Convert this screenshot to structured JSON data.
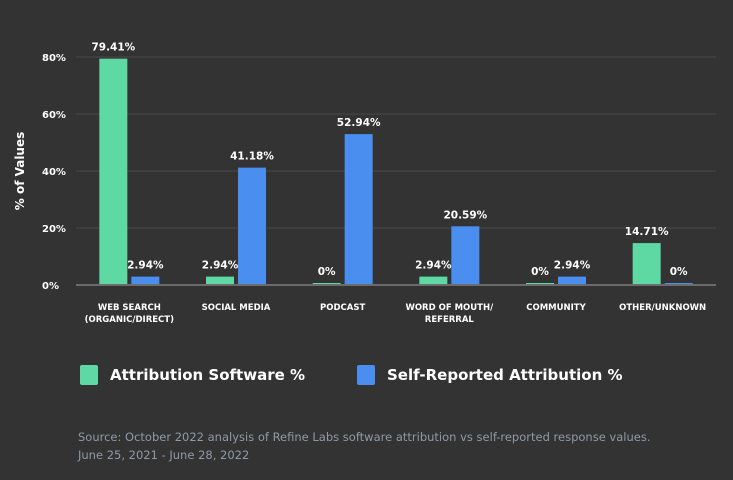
{
  "chart_data": {
    "type": "bar",
    "ylabel": "% of Values",
    "ylim": [
      0,
      80
    ],
    "yticks": [
      0,
      20,
      40,
      60,
      80
    ],
    "ytick_labels": [
      "0%",
      "20%",
      "40%",
      "60%",
      "80%"
    ],
    "grid": true,
    "categories": [
      [
        "WEB SEARCH",
        "(ORGANIC/DIRECT)"
      ],
      [
        "SOCIAL MEDIA"
      ],
      [
        "PODCAST"
      ],
      [
        "WORD OF MOUTH/",
        "REFERRAL"
      ],
      [
        "COMMUNITY"
      ],
      [
        "OTHER/UNKNOWN"
      ]
    ],
    "series": [
      {
        "name": "Attribution Software %",
        "color": "#5fd9a3",
        "values": [
          79.41,
          2.94,
          0,
          2.94,
          0,
          14.71
        ],
        "labels": [
          "79.41%",
          "2.94%",
          "0%",
          "2.94%",
          "0%",
          "14.71%"
        ]
      },
      {
        "name": "Self-Reported Attribution %",
        "color": "#4a8ef0",
        "values": [
          2.94,
          41.18,
          52.94,
          20.59,
          2.94,
          0
        ],
        "labels": [
          "2.94%",
          "41.18%",
          "52.94%",
          "20.59%",
          "2.94%",
          "0%"
        ]
      }
    ]
  },
  "legend": [
    {
      "label": "Attribution Software %",
      "color": "#5fd9a3"
    },
    {
      "label": "Self-Reported Attribution %",
      "color": "#4a8ef0"
    }
  ],
  "source": {
    "line1": "Source: October 2022 analysis of Refine Labs software attribution vs self-reported response values.",
    "line2": "June 25, 2021 - June 28, 2022"
  }
}
